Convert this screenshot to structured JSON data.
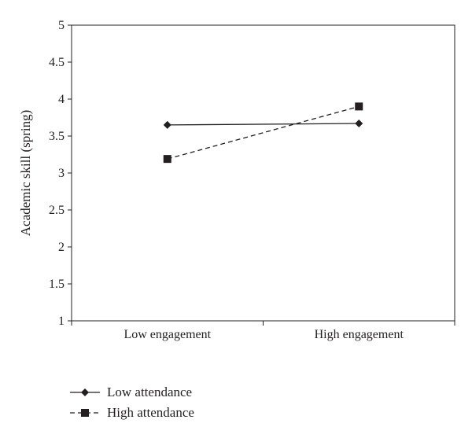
{
  "chart_data": {
    "type": "line",
    "categories": [
      "Low engagement",
      "High engagement"
    ],
    "series": [
      {
        "name": "Low attendance",
        "values": [
          3.65,
          3.67
        ],
        "marker": "diamond",
        "line": "solid",
        "color": "#231f20"
      },
      {
        "name": "High attendance",
        "values": [
          3.19,
          3.9
        ],
        "marker": "square",
        "line": "dashed",
        "color": "#231f20"
      }
    ],
    "title": "",
    "xlabel": "",
    "ylabel": "Academic skill (spring)",
    "ylim": [
      1,
      5
    ],
    "yticks": [
      "1",
      "1.5",
      "2",
      "2.5",
      "3",
      "3.5",
      "4",
      "4.5",
      "5"
    ],
    "grid": false,
    "legend_position": "bottom-left"
  }
}
